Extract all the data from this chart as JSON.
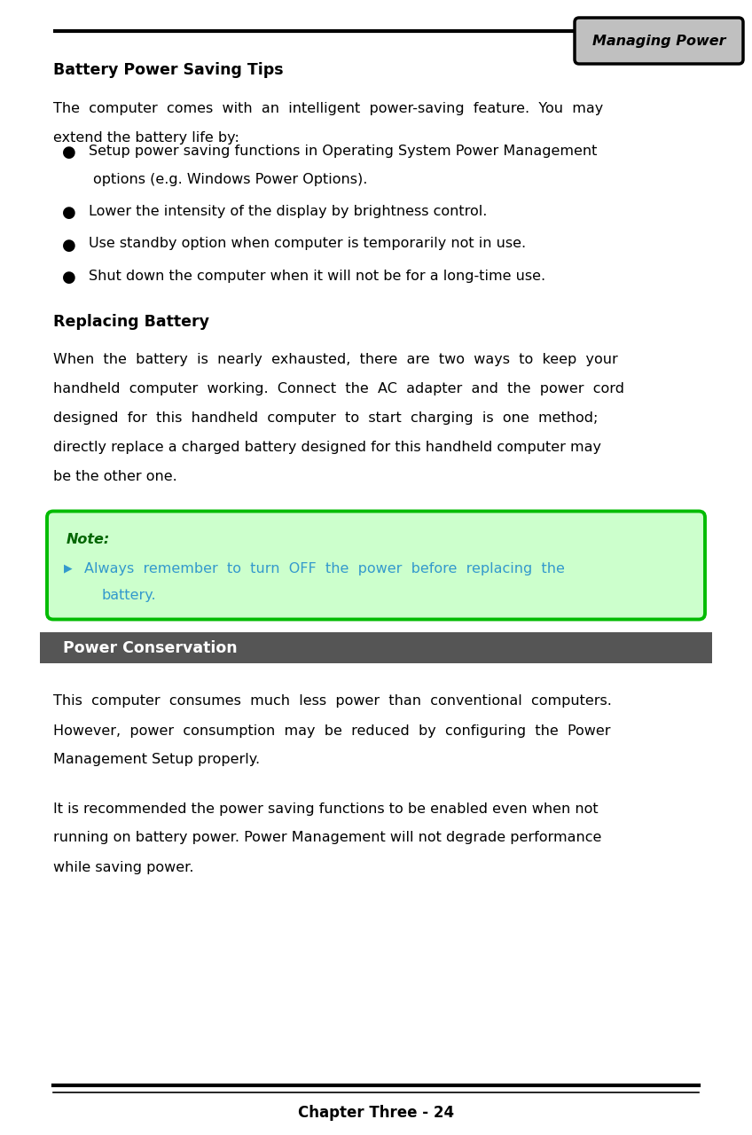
{
  "page_width": 8.48,
  "page_height": 12.8,
  "bg_color": "#ffffff",
  "header_tab_text": "Managing Power",
  "header_tab_bg": "#c0c0c0",
  "header_tab_border": "#000000",
  "section1_title": "Battery Power Saving Tips",
  "section1_para1": "The  computer  comes  with  an  intelligent  power-saving  feature.  You  may",
  "section1_para2": "extend the battery life by:",
  "bullet_items": [
    [
      "Setup power saving functions in Operating System Power Management",
      "options (e.g. Windows Power Options)."
    ],
    [
      "Lower the intensity of the display by brightness control."
    ],
    [
      "Use standby option when computer is temporarily not in use."
    ],
    [
      "Shut down the computer when it will not be for a long-time use."
    ]
  ],
  "section2_title": "Replacing Battery",
  "section2_lines": [
    "When  the  battery  is  nearly  exhausted,  there  are  two  ways  to  keep  your",
    "handheld  computer  working.  Connect  the  AC  adapter  and  the  power  cord",
    "designed  for  this  handheld  computer  to  start  charging  is  one  method;",
    "directly replace a charged battery designed for this handheld computer may",
    "be the other one."
  ],
  "note_title": "Note:",
  "note_line1": "Always  remember  to  turn  OFF  the  power  before  replacing  the",
  "note_line2": "battery.",
  "note_bg": "#ccffcc",
  "note_border": "#00bb00",
  "note_title_color": "#006600",
  "note_text_color": "#3399cc",
  "section3_bar_bg": "#555555",
  "section3_bar_text": " Power Conservation",
  "section3_bar_text_color": "#ffffff",
  "section3_lines1": [
    "This  computer  consumes  much  less  power  than  conventional  computers.",
    "However,  power  consumption  may  be  reduced  by  configuring  the  Power",
    "Management Setup properly."
  ],
  "section3_lines2": [
    "It is recommended the power saving functions to be enabled even when not",
    "running on battery power. Power Management will not degrade performance",
    "while saving power."
  ],
  "footer_text": "Chapter Three - 24",
  "ml": 0.6,
  "mr": 0.6,
  "text_color": "#000000",
  "line_color": "#000000",
  "body_fontsize": 11.5,
  "title_fontsize": 12.5
}
